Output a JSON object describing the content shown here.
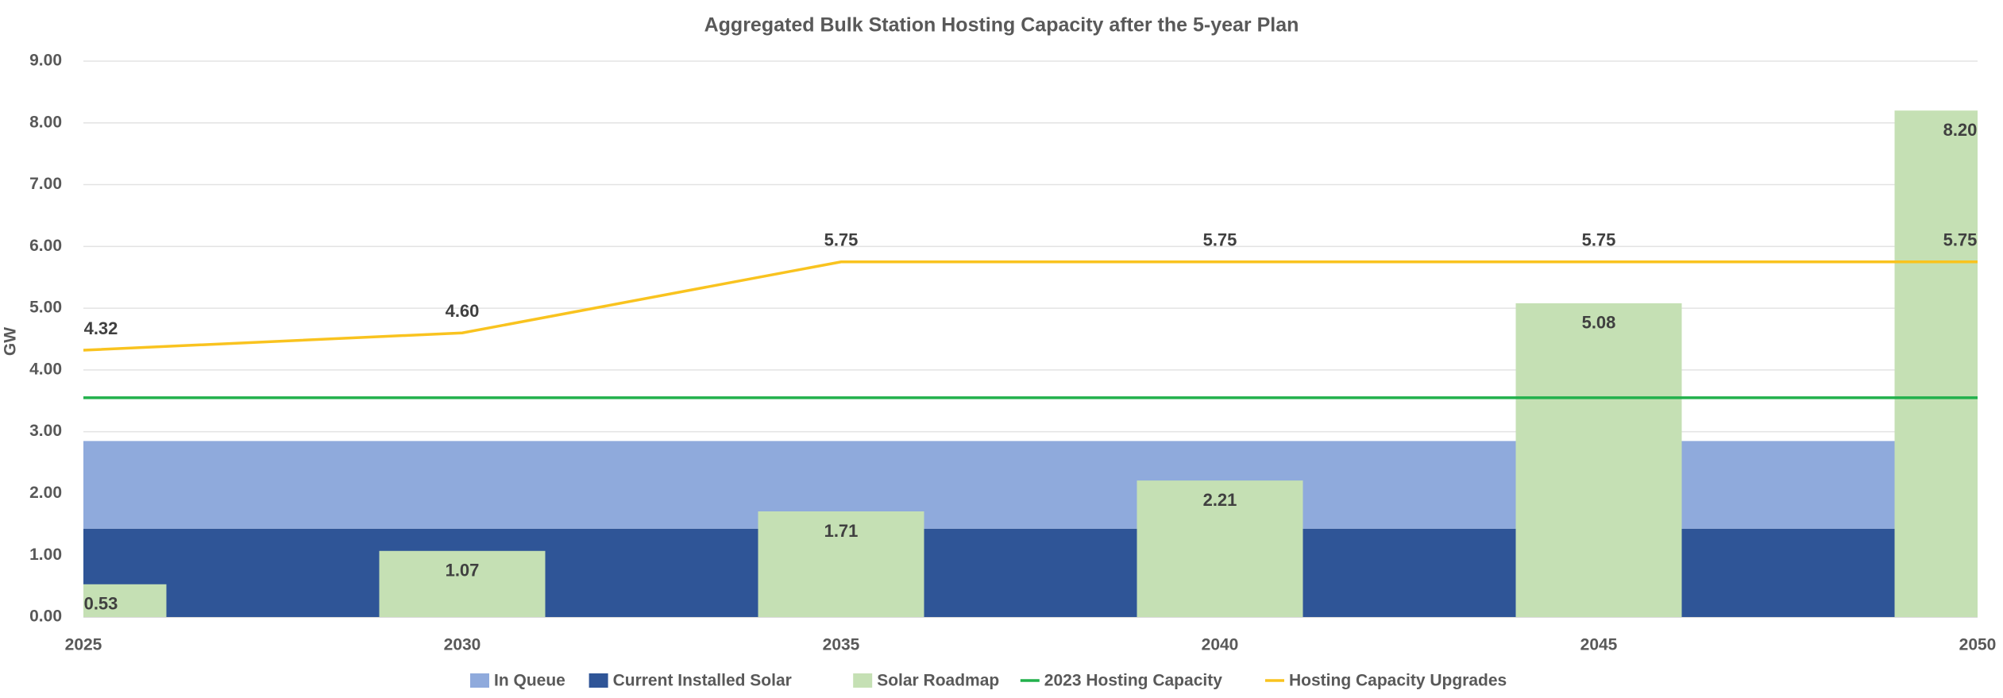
{
  "chart_data": {
    "type": "combo",
    "title": "Aggregated Bulk Station Hosting Capacity after the 5-year Plan",
    "y_label": "GW",
    "x": [
      2025,
      2030,
      2035,
      2040,
      2045,
      2050
    ],
    "xlim": [
      2025,
      2050
    ],
    "xticks": [
      2025,
      2030,
      2035,
      2040,
      2045,
      2050
    ],
    "ylim": [
      0,
      9
    ],
    "yticks": [
      {
        "value": 0,
        "label": "0.00"
      },
      {
        "value": 1,
        "label": "1.00"
      },
      {
        "value": 2,
        "label": "2.00"
      },
      {
        "value": 3,
        "label": "3.00"
      },
      {
        "value": 4,
        "label": "4.00"
      },
      {
        "value": 5,
        "label": "5.00"
      },
      {
        "value": 6,
        "label": "6.00"
      },
      {
        "value": 7,
        "label": "7.00"
      },
      {
        "value": 8,
        "label": "8.00"
      },
      {
        "value": 9,
        "label": "9.00"
      }
    ],
    "grid": true,
    "legend": "bottom",
    "series": [
      {
        "name": "In Queue",
        "type": "area",
        "color": "#8faadc",
        "values": [
          1.42,
          1.42,
          1.42,
          1.42,
          1.42,
          1.42
        ]
      },
      {
        "name": "Current Installed Solar",
        "type": "area",
        "color": "#2f5597",
        "values": [
          1.43,
          1.43,
          1.43,
          1.43,
          1.43,
          1.43
        ]
      },
      {
        "name": "Solar Roadmap",
        "type": "bar",
        "color": "#c5e0b4",
        "values": [
          0.53,
          1.07,
          1.71,
          2.21,
          5.08,
          8.2
        ],
        "value_labels": [
          "0.53",
          "1.07",
          "1.71",
          "2.21",
          "5.08",
          "8.20"
        ]
      },
      {
        "name": "2023 Hosting Capacity",
        "type": "line",
        "color": "#22b14c",
        "values": [
          3.55,
          3.55,
          3.55,
          3.55,
          3.55,
          3.55
        ]
      },
      {
        "name": "Hosting Capacity Upgrades",
        "type": "line",
        "color": "#f9c31f",
        "values": [
          4.32,
          4.6,
          5.75,
          5.75,
          5.75,
          5.75
        ],
        "value_labels": [
          "4.32",
          "4.60",
          "5.75",
          "5.75",
          "5.75",
          "5.75"
        ]
      }
    ]
  }
}
